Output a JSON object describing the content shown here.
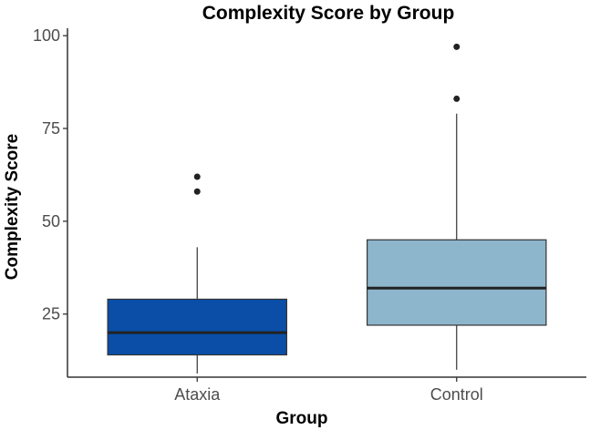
{
  "chart_data": {
    "type": "box",
    "title": "Complexity Score by Group",
    "xlabel": "Group",
    "ylabel": "Complexity Score",
    "ylim": [
      8,
      102
    ],
    "yticks": [
      25,
      50,
      75,
      100
    ],
    "grid": false,
    "legend": "none",
    "categories": [
      "Ataxia",
      "Control"
    ],
    "boxes": [
      {
        "category": "Ataxia",
        "whisker_low": 9,
        "q1": 14,
        "median": 20,
        "q3": 29,
        "whisker_high": 43,
        "outliers": [
          58,
          62
        ],
        "color": "#0a4ea8"
      },
      {
        "category": "Control",
        "whisker_low": 10,
        "q1": 22,
        "median": 32,
        "q3": 45,
        "whisker_high": 79,
        "outliers": [
          83,
          97
        ],
        "color": "#8db6cd"
      }
    ]
  }
}
